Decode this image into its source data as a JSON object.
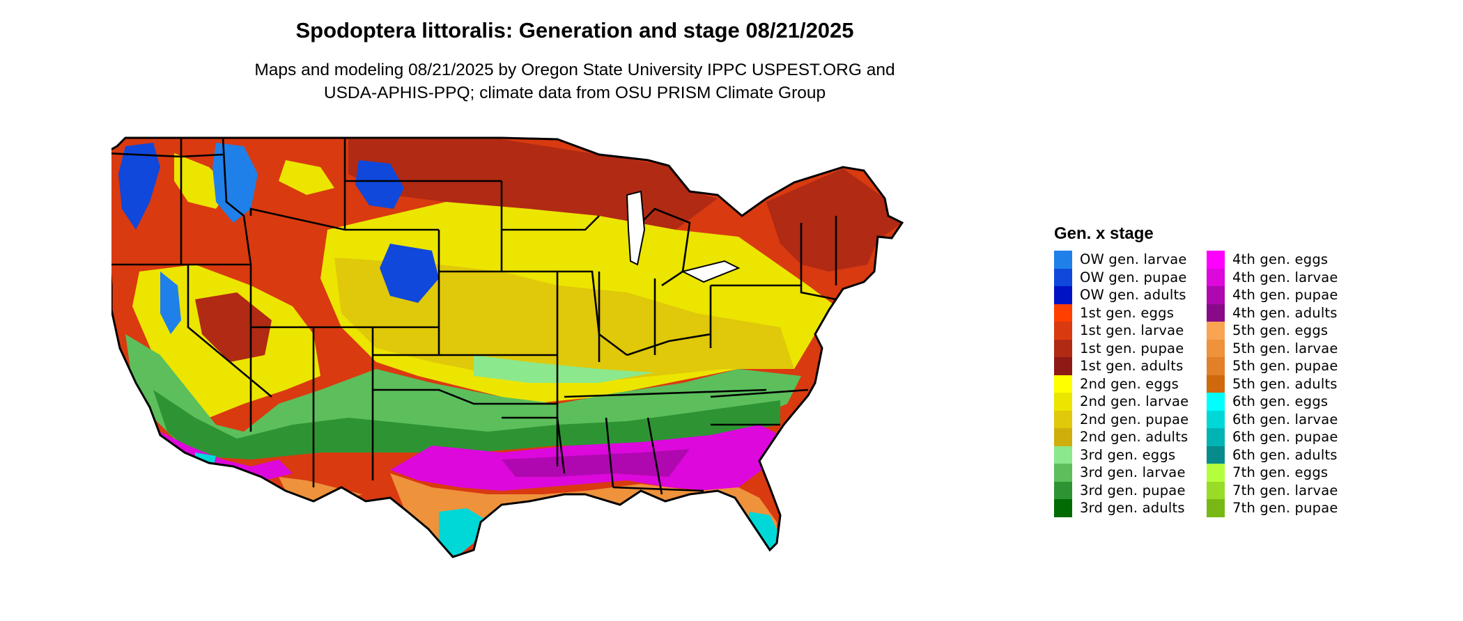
{
  "header": {
    "title": "Spodoptera littoralis: Generation and stage 08/21/2025",
    "subtitle_line1": "Maps and modeling 08/21/2025 by Oregon State University IPPC USPEST.ORG and",
    "subtitle_line2": "USDA-APHIS-PPQ; climate data from OSU PRISM Climate Group"
  },
  "legend": {
    "title": "Gen. x stage",
    "columns": [
      [
        {
          "label": "OW gen. larvae",
          "color": "#1f80ea"
        },
        {
          "label": "OW gen. pupae",
          "color": "#0f48db"
        },
        {
          "label": "OW gen. adults",
          "color": "#0013c4"
        },
        {
          "label": "1st gen. eggs",
          "color": "#ff3f00"
        },
        {
          "label": "1st gen. larvae",
          "color": "#d93a10"
        },
        {
          "label": "1st gen. pupae",
          "color": "#b02a14"
        },
        {
          "label": "1st gen. adults",
          "color": "#8e1a16"
        },
        {
          "label": "2nd gen. eggs",
          "color": "#ffff00"
        },
        {
          "label": "2nd gen. larvae",
          "color": "#ece500"
        },
        {
          "label": "2nd gen. pupae",
          "color": "#e0c80a"
        },
        {
          "label": "2nd gen. adults",
          "color": "#cfae0c"
        },
        {
          "label": "3rd gen. eggs",
          "color": "#8ce88c"
        },
        {
          "label": "3rd gen. larvae",
          "color": "#5cbf5c"
        },
        {
          "label": "3rd gen. pupae",
          "color": "#2e9433"
        },
        {
          "label": "3rd gen. adults",
          "color": "#036b03"
        }
      ],
      [
        {
          "label": "4th gen. eggs",
          "color": "#ff00ff"
        },
        {
          "label": "4th gen. larvae",
          "color": "#dc08dc"
        },
        {
          "label": "4th gen. pupae",
          "color": "#b008b0"
        },
        {
          "label": "4th gen. adults",
          "color": "#880a88"
        },
        {
          "label": "5th gen. eggs",
          "color": "#f8a452"
        },
        {
          "label": "5th gen. larvae",
          "color": "#ee923c"
        },
        {
          "label": "5th gen. pupae",
          "color": "#e2802a"
        },
        {
          "label": "5th gen. adults",
          "color": "#d0680e"
        },
        {
          "label": "6th gen. eggs",
          "color": "#00ffff"
        },
        {
          "label": "6th gen. larvae",
          "color": "#00d8d8"
        },
        {
          "label": "6th gen. pupae",
          "color": "#00b4b4"
        },
        {
          "label": "6th gen. adults",
          "color": "#078b8b"
        },
        {
          "label": "7th gen. eggs",
          "color": "#b4ff3c"
        },
        {
          "label": "7th gen. larvae",
          "color": "#98dc28"
        },
        {
          "label": "7th gen. pupae",
          "color": "#78b814"
        }
      ]
    ]
  },
  "map_colors": {
    "north_red": "#d93a10",
    "north_dark": "#b02a14",
    "ow_blue": "#0f48db",
    "yellow": "#ece500",
    "yellow_dark": "#e0c80a",
    "green": "#5cbf5c",
    "green_dark": "#2e9433",
    "magenta": "#dc08dc",
    "orange": "#ee923c",
    "cyan": "#00d8d8",
    "border": "#000000"
  }
}
